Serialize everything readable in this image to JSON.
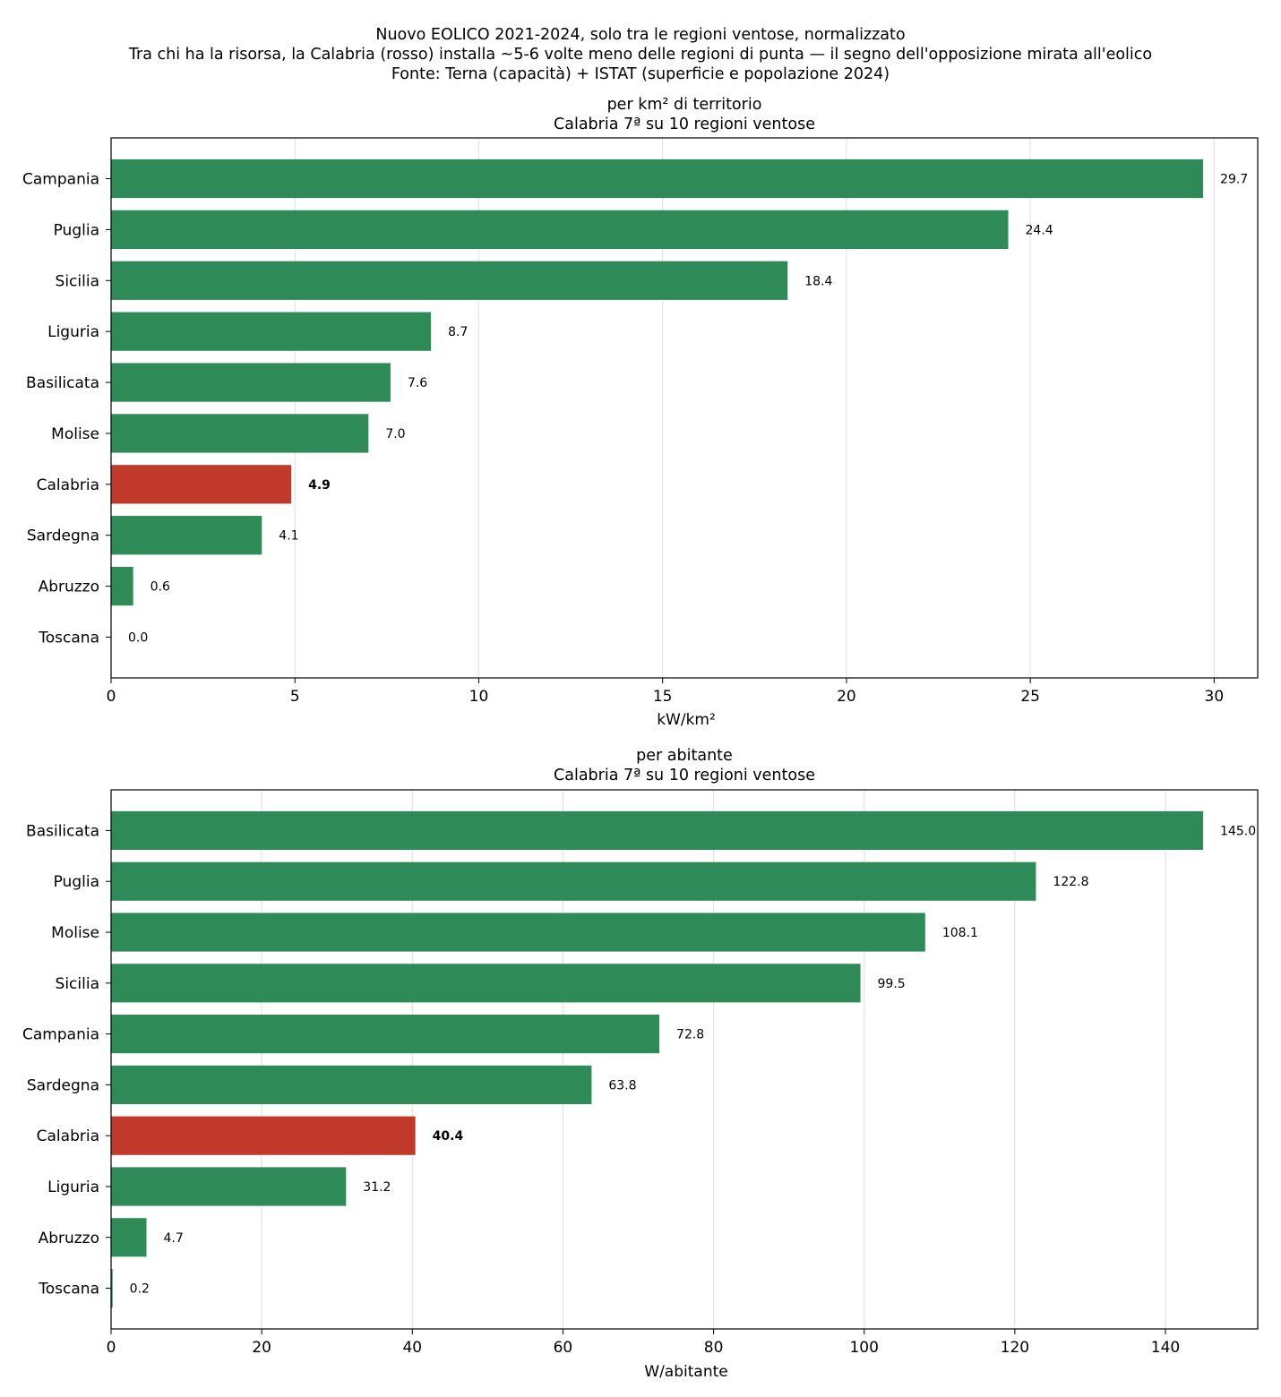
{
  "figure": {
    "title_lines": [
      "Nuovo EOLICO 2021-2024, solo tra le regioni ventose, normalizzato",
      "Tra chi ha la risorsa, la Calabria (rosso) installa ~5-6 volte meno delle regioni di punta — il segno dell'opposizione mirata all'eolico",
      "Fonte: Terna (capacità) + ISTAT (superficie e popolazione 2024)"
    ]
  },
  "chart_data": [
    {
      "type": "bar",
      "orientation": "horizontal",
      "title_lines": [
        "per km² di territorio",
        "Calabria 7ª su 10 regioni ventose"
      ],
      "xlabel": "kW/km²",
      "ylabel": "",
      "xlim": [
        0,
        31.185
      ],
      "xticks": [
        0,
        5,
        10,
        15,
        20,
        25,
        30
      ],
      "grid": "x",
      "categories": [
        "Campania",
        "Puglia",
        "Sicilia",
        "Liguria",
        "Basilicata",
        "Molise",
        "Calabria",
        "Sardegna",
        "Abruzzo",
        "Toscana"
      ],
      "values": [
        29.7,
        24.4,
        18.4,
        8.7,
        7.6,
        7.0,
        4.9,
        4.1,
        0.6,
        0.0
      ],
      "value_labels": [
        "29.7",
        "24.4",
        "18.4",
        "8.7",
        "7.6",
        "7.0",
        "4.9",
        "4.1",
        "0.6",
        "0.0"
      ],
      "highlight": "Calabria",
      "colors": {
        "default": "#2e8b57",
        "highlight": "#c0392b"
      }
    },
    {
      "type": "bar",
      "orientation": "horizontal",
      "title_lines": [
        "per abitante",
        "Calabria 7ª su 10 regioni ventose"
      ],
      "xlabel": "W/abitante",
      "ylabel": "",
      "xlim": [
        0,
        152.25
      ],
      "xticks": [
        0,
        20,
        40,
        60,
        80,
        100,
        120,
        140
      ],
      "grid": "x",
      "categories": [
        "Basilicata",
        "Puglia",
        "Molise",
        "Sicilia",
        "Campania",
        "Sardegna",
        "Calabria",
        "Liguria",
        "Abruzzo",
        "Toscana"
      ],
      "values": [
        145.0,
        122.8,
        108.1,
        99.5,
        72.8,
        63.8,
        40.4,
        31.2,
        4.7,
        0.2
      ],
      "value_labels": [
        "145.0",
        "122.8",
        "108.1",
        "99.5",
        "72.8",
        "63.8",
        "40.4",
        "31.2",
        "4.7",
        "0.2"
      ],
      "highlight": "Calabria",
      "colors": {
        "default": "#2e8b57",
        "highlight": "#c0392b"
      }
    }
  ]
}
